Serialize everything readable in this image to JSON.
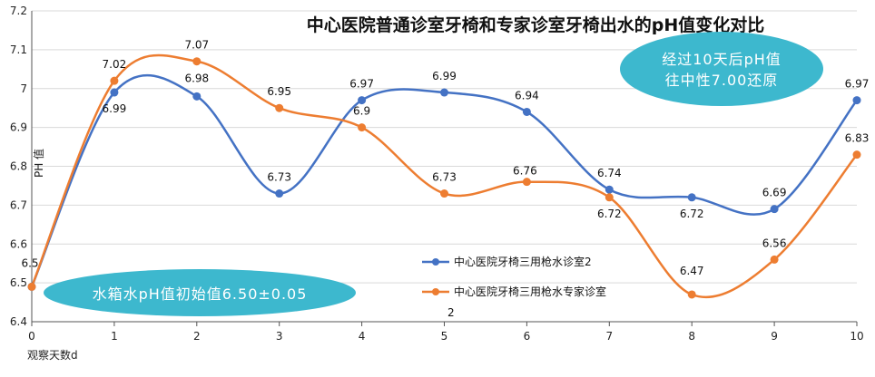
{
  "chart_data": {
    "type": "line",
    "title": "中心医院普通诊室牙椅和专家诊室牙椅出水的pH值变化对比",
    "xlabel": "观察天数d",
    "ylabel": "PH 值",
    "x": [
      0,
      1,
      2,
      3,
      4,
      5,
      6,
      7,
      8,
      9,
      10
    ],
    "x_ticks": [
      "0",
      "1",
      "2",
      "3",
      "4",
      "5",
      "6",
      "7",
      "8",
      "9",
      "10"
    ],
    "y_ticks": [
      "6.4",
      "6.5",
      "6.6",
      "6.7",
      "6.8",
      "6.9",
      "7",
      "7.1",
      "7.2"
    ],
    "ylim": [
      6.4,
      7.2
    ],
    "xlim": [
      0,
      10
    ],
    "grid": "horizontal",
    "series": [
      {
        "name": "中心医院牙椅三用枪水诊室2",
        "color": "#4472C4",
        "values": [
          6.49,
          6.99,
          6.98,
          6.73,
          6.97,
          6.99,
          6.94,
          6.74,
          6.72,
          6.69,
          6.97
        ],
        "labels": [
          "6.5",
          "6.99",
          "6.98",
          "6.73",
          "6.97",
          "6.99",
          "6.94",
          "6.74",
          "6.72",
          "6.69",
          "6.97"
        ]
      },
      {
        "name": "中心医院牙椅三用枪水专家诊室",
        "color": "#ED7D31",
        "values": [
          6.49,
          7.02,
          7.07,
          6.95,
          6.9,
          6.73,
          6.76,
          6.72,
          6.47,
          6.56,
          6.83
        ],
        "labels": [
          "",
          "7.02",
          "7.07",
          "6.95",
          "6.9",
          "6.73",
          "6.76",
          "6.72",
          "6.47",
          "6.56",
          "6.83"
        ]
      }
    ],
    "legend_placement": "bottom-center",
    "legend_extra": "2",
    "annotations": [
      {
        "text": "经过10天后pH值",
        "color": "#3DB8CE"
      },
      {
        "text": "往中性7.00还原",
        "color": "#3DB8CE"
      },
      {
        "text": "水箱水pH值初始值6.50±0.05",
        "color": "#3DB8CE"
      }
    ]
  }
}
